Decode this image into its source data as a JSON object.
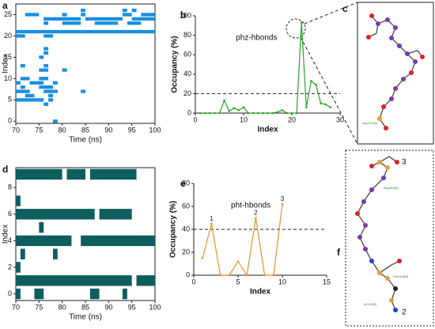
{
  "chart_data": [
    {
      "type": "barcode",
      "panel": "a",
      "xlabel": "Time (ns)",
      "ylabel": "Index",
      "color": "#1a8fe0",
      "xlim": [
        70,
        100
      ],
      "ylim": [
        -0.5,
        27.5
      ],
      "xticks": [
        70,
        75,
        80,
        85,
        90,
        95,
        100
      ],
      "yticks": [
        0,
        5,
        10,
        15,
        20,
        25
      ],
      "rows": [
        {
          "index": 26,
          "intervals": [
            [
              84,
              85
            ],
            [
              93,
              94
            ],
            [
              95,
              96
            ]
          ]
        },
        {
          "index": 25,
          "intervals": [
            [
              72,
              75
            ],
            [
              80,
              81
            ],
            [
              84,
              85
            ],
            [
              93,
              95
            ],
            [
              97,
              100
            ]
          ]
        },
        {
          "index": 24,
          "intervals": [
            [
              76,
              84
            ],
            [
              85,
              93
            ],
            [
              95,
              100
            ]
          ]
        },
        {
          "index": 23,
          "intervals": [
            [
              76,
              77
            ],
            [
              80,
              84
            ],
            [
              87,
              92
            ],
            [
              94,
              97
            ]
          ]
        },
        {
          "index": 21,
          "intervals": [
            [
              70,
              100
            ]
          ]
        },
        {
          "index": 20,
          "intervals": [
            [
              70,
              72
            ],
            [
              76,
              78
            ]
          ]
        },
        {
          "index": 17,
          "intervals": [
            [
              76,
              77
            ]
          ]
        },
        {
          "index": 16,
          "intervals": [
            [
              76,
              77
            ]
          ]
        },
        {
          "index": 15,
          "intervals": [
            [
              75,
              76
            ]
          ]
        },
        {
          "index": 13,
          "intervals": [
            [
              71,
              72
            ],
            [
              76,
              77
            ]
          ]
        },
        {
          "index": 12,
          "intervals": [
            [
              75,
              77
            ],
            [
              80,
              81
            ]
          ]
        },
        {
          "index": 10,
          "intervals": [
            [
              71,
              73
            ],
            [
              75,
              77
            ]
          ]
        },
        {
          "index": 9,
          "intervals": [
            [
              70,
              71
            ],
            [
              73,
              76
            ],
            [
              78,
              79
            ]
          ]
        },
        {
          "index": 8,
          "intervals": [
            [
              71,
              72
            ],
            [
              75,
              78
            ]
          ]
        },
        {
          "index": 7,
          "intervals": [
            [
              70,
              73
            ],
            [
              76,
              79
            ],
            [
              84,
              85
            ]
          ]
        },
        {
          "index": 6,
          "intervals": [
            [
              72,
              74
            ],
            [
              77,
              78
            ]
          ]
        },
        {
          "index": 5,
          "intervals": [
            [
              70,
              76
            ],
            [
              77,
              78
            ]
          ]
        },
        {
          "index": 4,
          "intervals": [
            [
              76,
              77
            ]
          ]
        },
        {
          "index": 0,
          "intervals": [
            [
              78,
              79
            ]
          ]
        }
      ]
    },
    {
      "type": "line",
      "panel": "b",
      "xlabel": "Index",
      "ylabel": "Occupancy (%)",
      "annotation": "phz-hbonds",
      "xlim": [
        0,
        30
      ],
      "ylim": [
        0,
        100
      ],
      "xticks": [
        0,
        10,
        20,
        30
      ],
      "yticks": [
        0,
        20,
        40,
        60,
        80,
        100
      ],
      "hline": 20,
      "series": [
        {
          "color": "#2ca02c",
          "x": [
            1,
            2,
            3,
            4,
            5,
            6,
            7,
            8,
            9,
            10,
            11,
            12,
            13,
            14,
            15,
            16,
            17,
            18,
            19,
            20,
            21,
            22,
            23,
            24,
            25,
            26,
            27,
            28
          ],
          "values": [
            0,
            0,
            0,
            0,
            0,
            13,
            2,
            5,
            3,
            6,
            0,
            0,
            0,
            0,
            0,
            0,
            1,
            3,
            0,
            0,
            0,
            93,
            6,
            33,
            29,
            10,
            9,
            6
          ]
        }
      ],
      "labels": []
    },
    {
      "type": "barcode",
      "panel": "d",
      "xlabel": "Time (ns)",
      "ylabel": "Index",
      "color": "#0e5e5e",
      "xlim": [
        70,
        100
      ],
      "ylim": [
        -0.5,
        9.5
      ],
      "xticks": [
        70,
        75,
        80,
        85,
        90,
        95,
        100
      ],
      "yticks": [
        0,
        2,
        4,
        6,
        8
      ],
      "rows": [
        {
          "index": 9,
          "intervals": [
            [
              70,
              80
            ],
            [
              81,
              85
            ],
            [
              86,
              96
            ]
          ]
        },
        {
          "index": 7,
          "intervals": [
            [
              70,
              71
            ]
          ]
        },
        {
          "index": 6,
          "intervals": [
            [
              70,
              87
            ],
            [
              88,
              95
            ]
          ]
        },
        {
          "index": 5,
          "intervals": [
            [
              75,
              76
            ]
          ]
        },
        {
          "index": 4,
          "intervals": [
            [
              70,
              82
            ],
            [
              84,
              100
            ]
          ]
        },
        {
          "index": 3,
          "intervals": [
            [
              71,
              72
            ],
            [
              78,
              79
            ]
          ]
        },
        {
          "index": 2,
          "intervals": [
            [
              70,
              71
            ]
          ]
        },
        {
          "index": 1,
          "intervals": [
            [
              70,
              95
            ],
            [
              96,
              100
            ]
          ]
        },
        {
          "index": 0,
          "intervals": [
            [
              70,
              71
            ],
            [
              74,
              76
            ],
            [
              86,
              88
            ],
            [
              93,
              94
            ]
          ]
        }
      ]
    },
    {
      "type": "line",
      "panel": "e",
      "xlabel": "Index",
      "ylabel": "Occupancy (%)",
      "annotation": "pht-hbonds",
      "xlim": [
        0,
        15
      ],
      "ylim": [
        0,
        80
      ],
      "xticks": [
        0,
        5,
        10,
        15
      ],
      "yticks": [
        0,
        20,
        40,
        60,
        80
      ],
      "hline": 40,
      "series": [
        {
          "color": "#e8922e",
          "x": [
            1,
            2,
            3,
            4,
            5,
            6,
            7,
            8,
            9,
            10
          ],
          "values": [
            15,
            45,
            0,
            0,
            12,
            0,
            50,
            0,
            0,
            62
          ]
        }
      ],
      "labels": [
        {
          "text": "1",
          "x": 2
        },
        {
          "text": "2",
          "x": 7
        },
        {
          "text": "3",
          "x": 10
        }
      ]
    }
  ],
  "diagrams": [
    {
      "panel": "c",
      "labels": [
        "Asp191(B)"
      ]
    },
    {
      "panel": "f",
      "labels": [
        "3",
        "Asp289(B)",
        "Phe164(B)",
        "Ile142(B)",
        "2"
      ]
    }
  ]
}
